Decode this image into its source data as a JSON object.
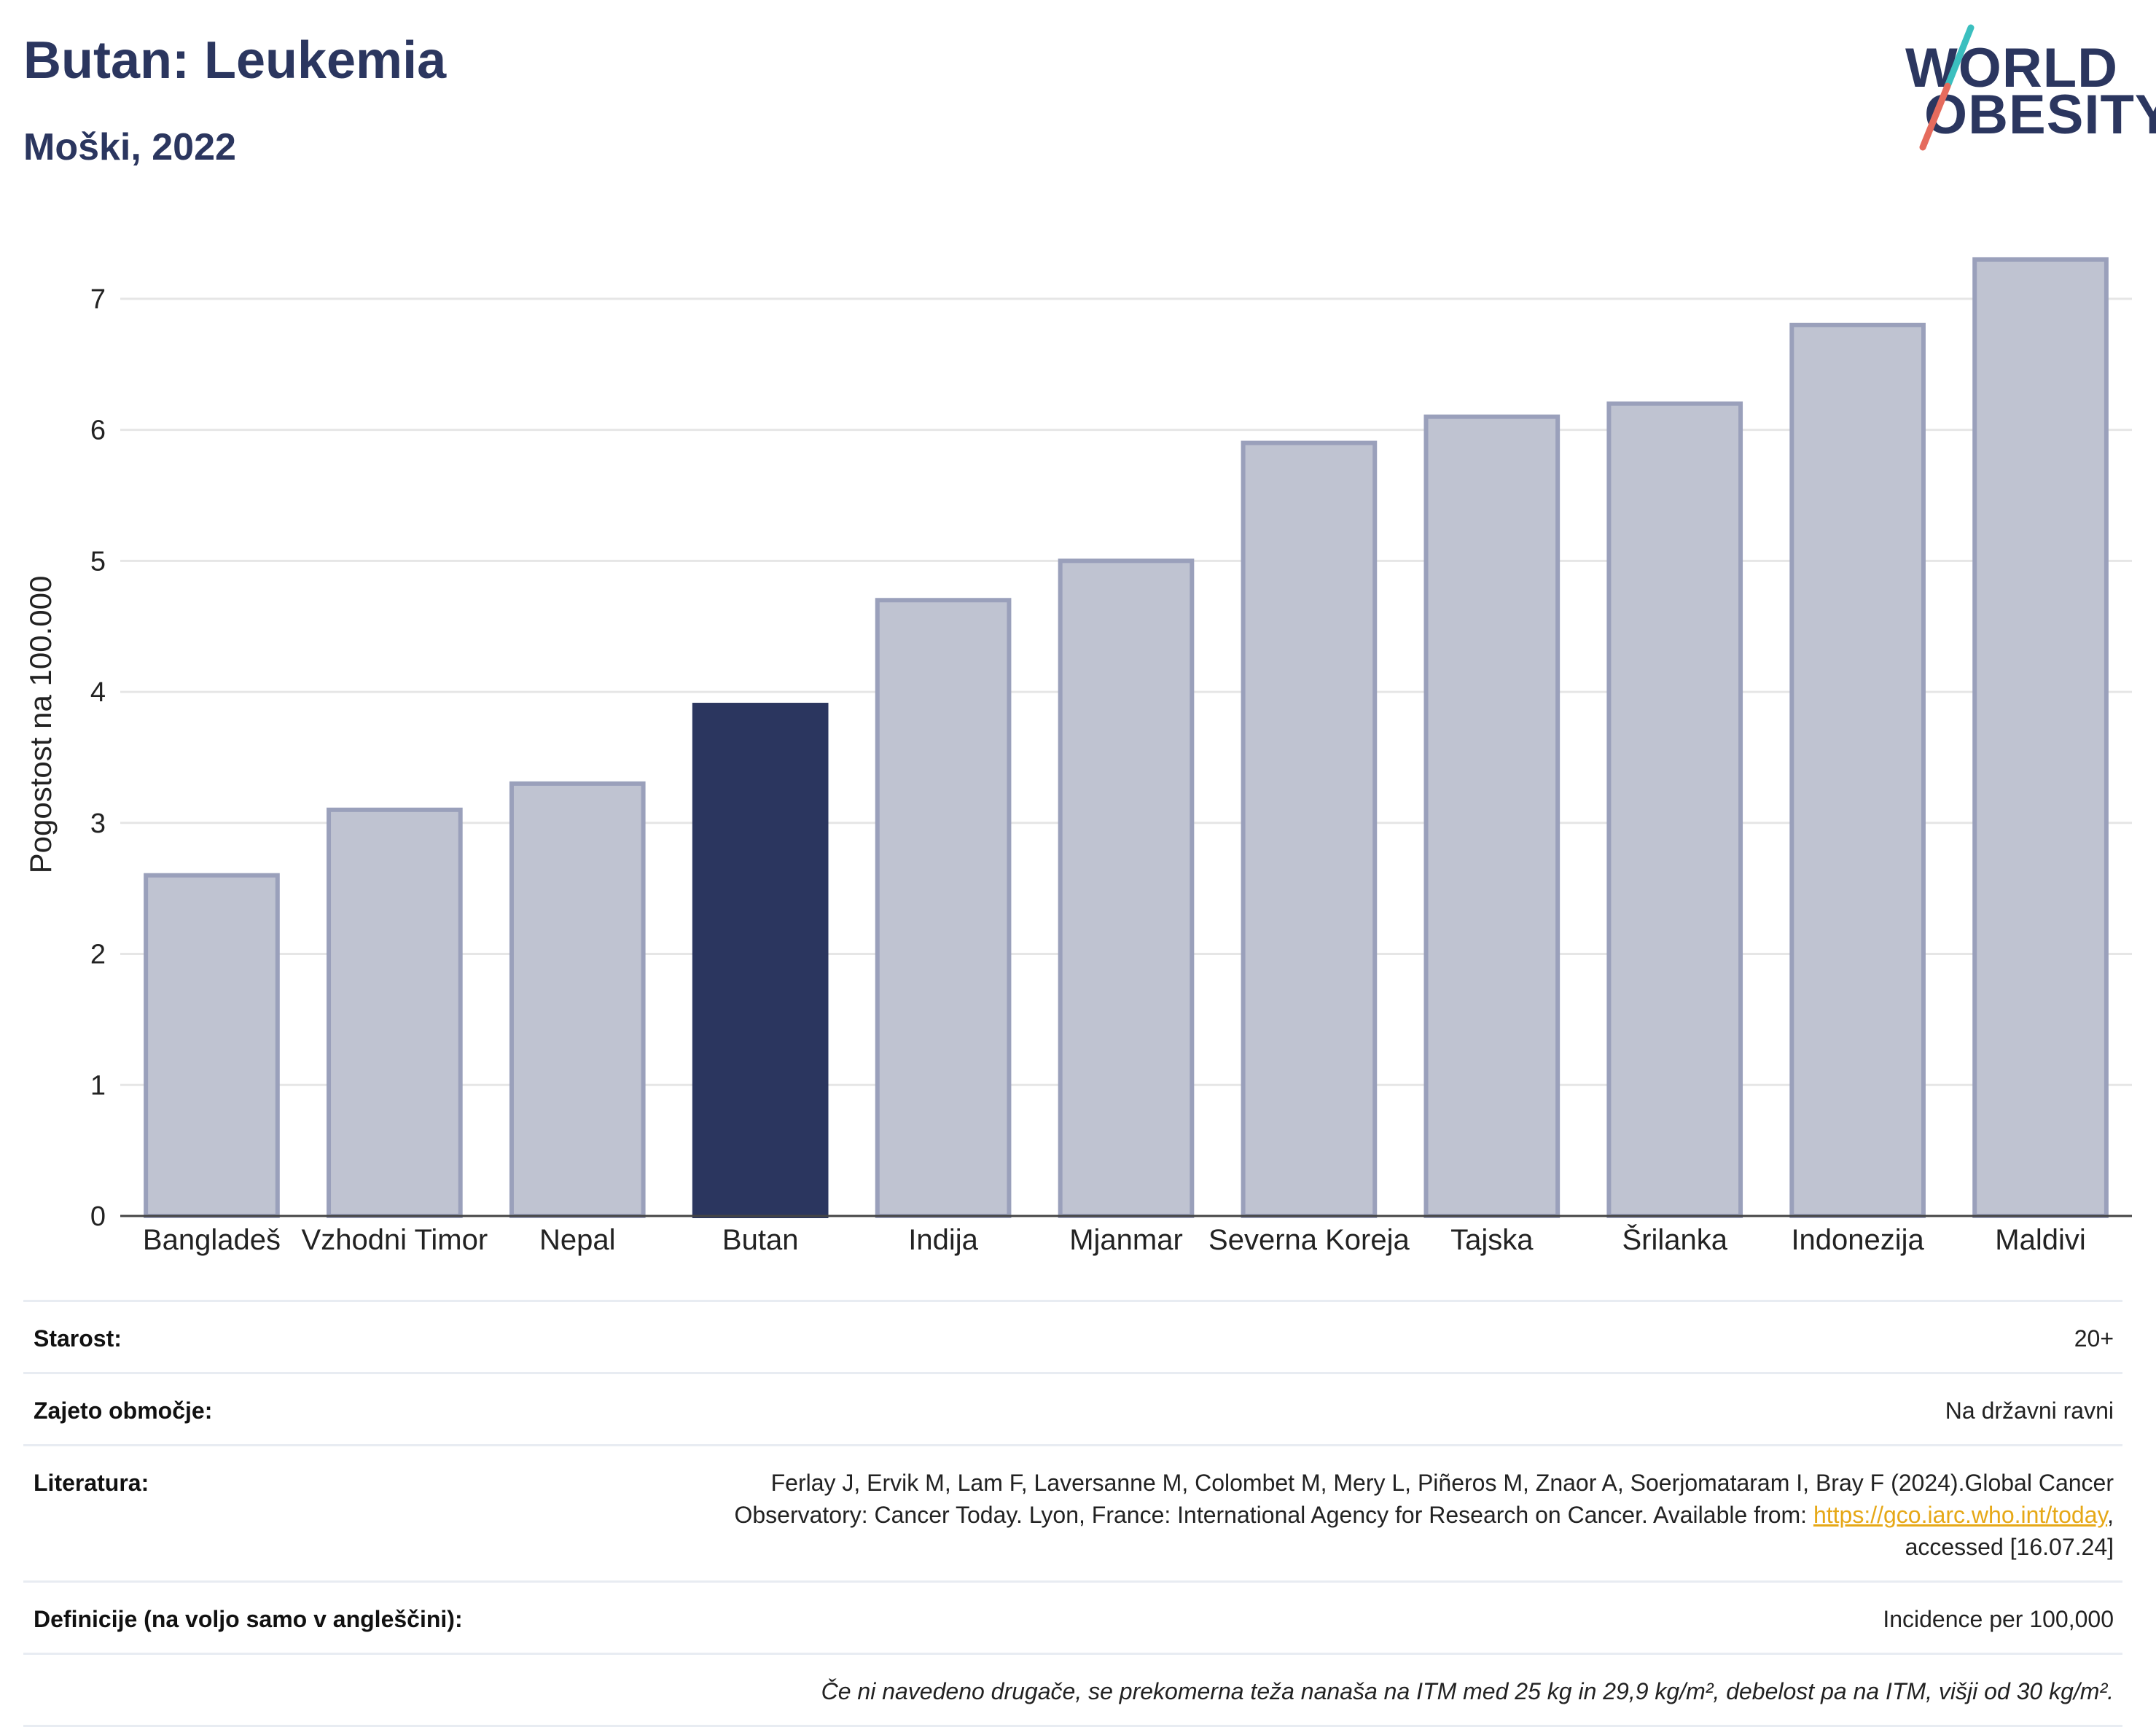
{
  "header": {
    "title": "Butan: Leukemia",
    "subtitle": "Moški, 2022"
  },
  "logo": {
    "line1": "WORLD",
    "line2": "OBESITY",
    "accent_colors": [
      "#3bbfbf",
      "#e56b5d"
    ],
    "brand_color": "#2b365f"
  },
  "chart_data": {
    "type": "bar",
    "categories": [
      "Bangladeš",
      "Vzhodni Timor",
      "Nepal",
      "Butan",
      "Indija",
      "Mjanmar",
      "Severna Koreja",
      "Tajska",
      "Šrilanka",
      "Indonezija",
      "Maldivi"
    ],
    "values": [
      2.6,
      3.1,
      3.3,
      3.9,
      4.7,
      5.0,
      5.9,
      6.1,
      6.2,
      6.8,
      7.3
    ],
    "highlight": "Butan",
    "highlight_color": "#2b365f",
    "bar_color": "#bfc3d1",
    "bar_border_color": "#9aa0bb",
    "xlabel": "",
    "ylabel": "Pogostost na 100.000",
    "ylim": [
      0,
      7.5
    ],
    "yticks": [
      0,
      1,
      2,
      3,
      4,
      5,
      6,
      7
    ],
    "grid": true,
    "legend": "none"
  },
  "meta": {
    "age_label": "Starost:",
    "age_value": "20+",
    "coverage_label": "Zajeto območje:",
    "coverage_value": "Na državni ravni",
    "literature_label": "Literatura:",
    "literature_line1": "Ferlay J, Ervik M, Lam F, Laversanne M, Colombet M, Mery L, Piñeros M, Znaor A, Soerjomataram I, Bray F (2024).Global Cancer",
    "literature_line2": "Observatory: Cancer Today. Lyon, France: International Agency for Research on Cancer. Available from:",
    "literature_link": "https://gco.iarc.who.int/today",
    "literature_line3": "accessed [16.07.24]",
    "definitions_label": "Definicije (na voljo samo v angleščini):",
    "definitions_value": "Incidence per 100,000",
    "note": "Če ni navedeno drugače, se prekomerna teža nanaša na ITM med 25 kg in 29,9 kg/m², debelost pa na ITM, višji od 30 kg/m²."
  }
}
